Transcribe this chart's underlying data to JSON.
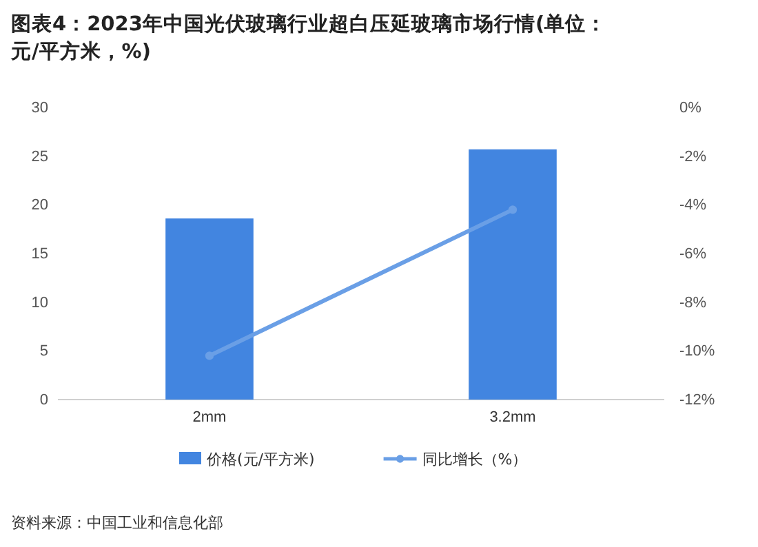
{
  "chart_data": {
    "type": "bar",
    "title": "图表4：2023年中国光伏玻璃行业超白压延玻璃市场行情(单位：元/平方米，%)",
    "categories": [
      "2mm",
      "3.2mm"
    ],
    "series": [
      {
        "name": "价格(元/平方米)",
        "color": "#4285e0",
        "values": [
          18.6,
          25.7
        ]
      },
      {
        "name": "同比增长（%）",
        "type": "line",
        "axis": "y2",
        "color": "#6a9fe6",
        "values": [
          -10.2,
          -4.2
        ]
      }
    ],
    "ylim": [
      0,
      30
    ],
    "yticks": [
      0,
      5,
      10,
      15,
      20,
      25,
      30
    ],
    "y2lim": [
      -12,
      0
    ],
    "y2ticks": [
      {
        "value": -12,
        "label": "-12%"
      },
      {
        "value": -10,
        "label": "-10%"
      },
      {
        "value": -8,
        "label": "-8%"
      },
      {
        "value": -6,
        "label": "-6%"
      },
      {
        "value": -4,
        "label": "-4%"
      },
      {
        "value": -2,
        "label": "-2%"
      },
      {
        "value": 0,
        "label": "0%"
      }
    ],
    "marker": "circle",
    "legend": "bottom",
    "grid": false,
    "annotations": [
      "资料来源：中国工业和信息化部"
    ]
  }
}
